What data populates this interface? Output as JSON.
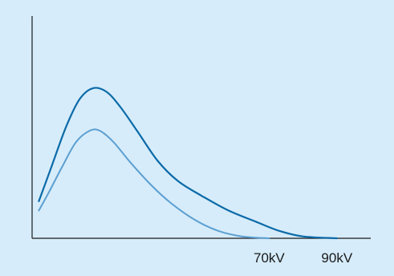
{
  "chart_data": {
    "type": "line",
    "title": "",
    "xlabel": "",
    "ylabel": "",
    "x_tick_labels": [
      {
        "label": "70kV",
        "x": 70
      },
      {
        "label": "90kV",
        "x": 90
      }
    ],
    "xlim": [
      0,
      100
    ],
    "ylim": [
      0,
      100
    ],
    "grid": false,
    "legend": "none",
    "series": [
      {
        "key": "90kV",
        "color": "#0b6aa8",
        "points": [
          [
            2,
            20
          ],
          [
            6,
            40
          ],
          [
            10,
            60
          ],
          [
            14,
            75
          ],
          [
            18,
            81
          ],
          [
            22,
            79
          ],
          [
            26,
            71
          ],
          [
            31,
            58
          ],
          [
            37,
            42
          ],
          [
            43,
            31
          ],
          [
            50,
            23
          ],
          [
            58,
            15
          ],
          [
            66,
            9
          ],
          [
            73,
            4
          ],
          [
            80,
            1
          ],
          [
            90,
            0
          ]
        ]
      },
      {
        "key": "70kV",
        "color": "#5c9fd1",
        "points": [
          [
            2,
            15
          ],
          [
            5,
            25
          ],
          [
            9,
            39
          ],
          [
            13,
            52
          ],
          [
            17,
            58
          ],
          [
            20,
            58
          ],
          [
            24,
            52
          ],
          [
            29,
            41
          ],
          [
            35,
            29
          ],
          [
            41,
            19
          ],
          [
            48,
            10
          ],
          [
            55,
            4
          ],
          [
            62,
            1
          ],
          [
            70,
            0
          ]
        ]
      }
    ]
  }
}
